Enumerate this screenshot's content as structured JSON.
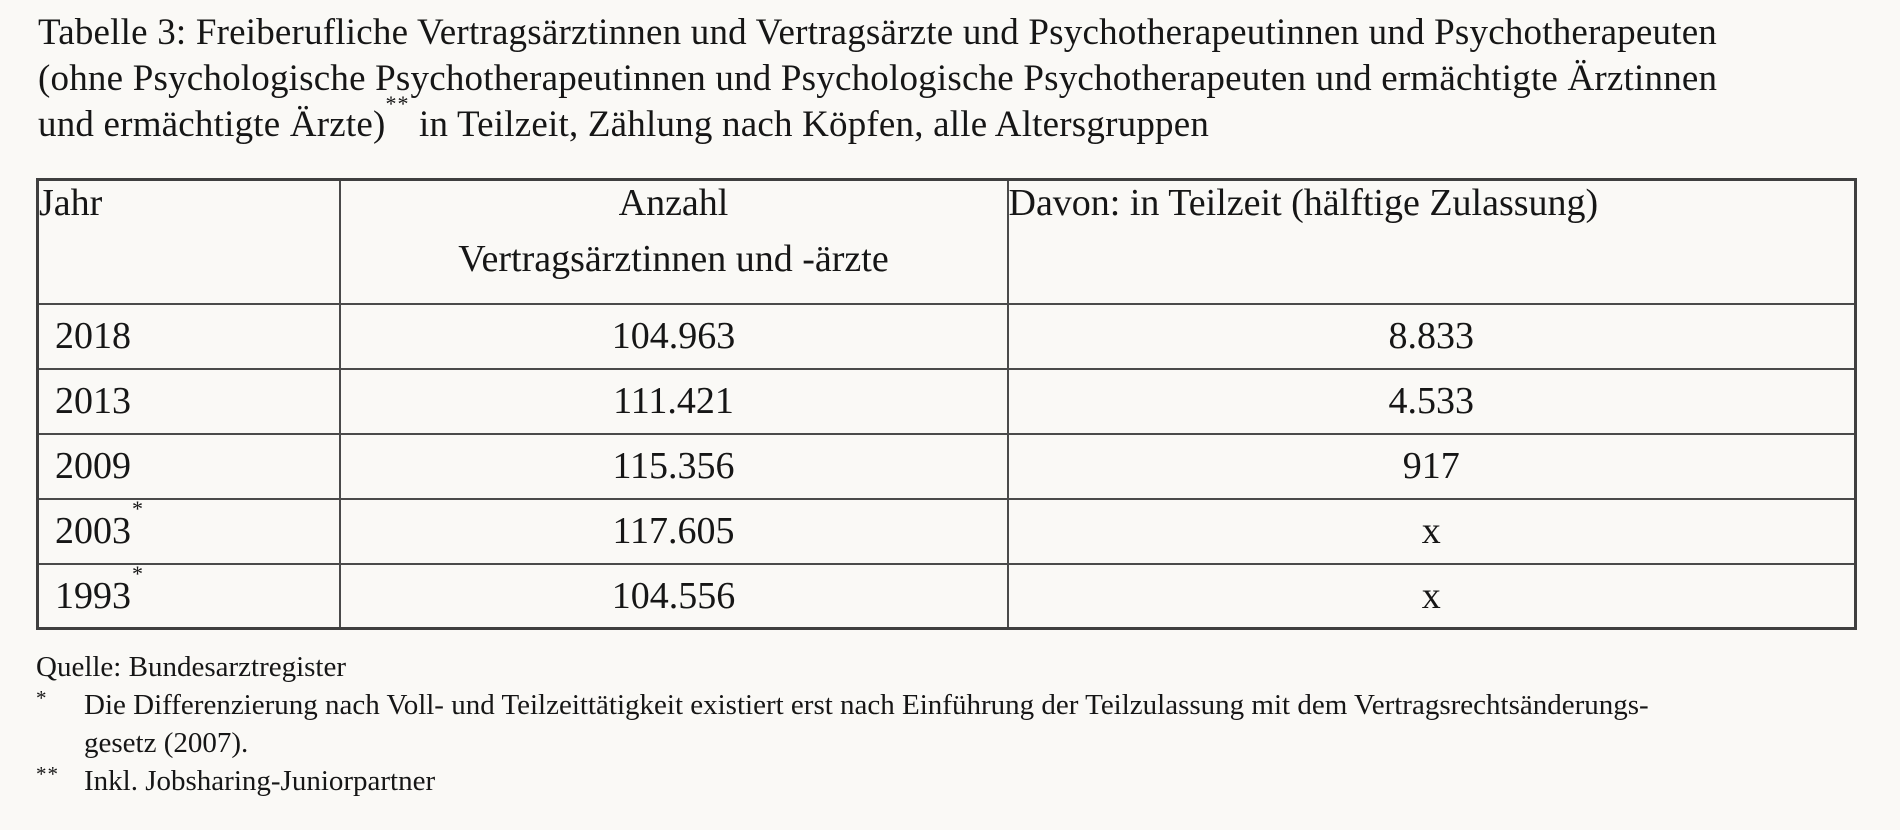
{
  "colors": {
    "background": "#faf9f6",
    "text": "#161616",
    "table_border": "#4a4a4a"
  },
  "title": {
    "line1": "Tabelle 3: Freiberufliche Vertragsärztinnen und Vertragsärzte und Psychotherapeutinnen und Psychotherapeuten",
    "line2": "(ohne Psychologische Psychotherapeutinnen und Psychologische Psychotherapeuten und ermächtigte Ärztinnen",
    "line3_pre": "und ermächtigte Ärzte)",
    "line3_sup": "**",
    "line3_post": " in Teilzeit, Zählung nach Köpfen, alle Altersgruppen"
  },
  "table": {
    "headers": {
      "col1": "Jahr",
      "col2_line1": "Anzahl",
      "col2_line2": "Vertragsärztinnen und -ärzte",
      "col3": "Davon: in Teilzeit (hälftige Zulassung)"
    },
    "rows": [
      {
        "year": "2018",
        "year_sup": "",
        "anzahl": "104.963",
        "teilzeit": "8.833"
      },
      {
        "year": "2013",
        "year_sup": "",
        "anzahl": "111.421",
        "teilzeit": "4.533"
      },
      {
        "year": "2009",
        "year_sup": "",
        "anzahl": "115.356",
        "teilzeit": "917"
      },
      {
        "year": "2003",
        "year_sup": "*",
        "anzahl": "117.605",
        "teilzeit": "x"
      },
      {
        "year": "1993",
        "year_sup": "*",
        "anzahl": "104.556",
        "teilzeit": "x"
      }
    ]
  },
  "footer": {
    "source": "Quelle: Bundesarztregister",
    "footnote1_marker": "*",
    "footnote1_line1": "Die Differenzierung nach Voll- und Teilzeittätigkeit existiert erst nach Einführung der Teilzulassung mit dem Vertragsrechtsänderungs-",
    "footnote1_line2": "gesetz (2007).",
    "footnote2_marker": "**",
    "footnote2_text": "Inkl. Jobsharing-Juniorpartner"
  }
}
